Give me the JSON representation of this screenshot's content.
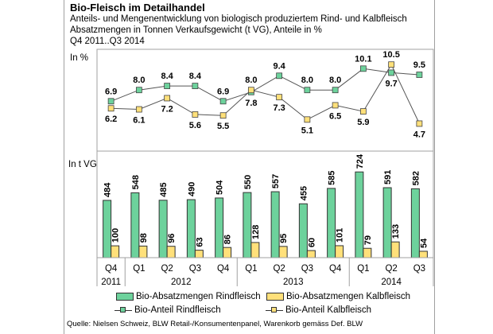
{
  "header": {
    "title": "Bio-Fleisch im Detailhandel",
    "subtitle1": "Anteils- und Mengenentwicklung von biologisch produziertem Rind- und Kalbfleisch",
    "subtitle2": "Absatzmengen in Tonnen Verkaufsgewicht (t VG), Anteile in %",
    "period": "Q4 2011..Q3 2014"
  },
  "colors": {
    "rind": "#6dd29c",
    "kalb": "#ffe07a",
    "line": "#555555",
    "axis": "#a0a0a0"
  },
  "chart_data": [
    {
      "type": "line",
      "title": "Bio-Anteil",
      "ylabel": "In %",
      "categories": [
        "Q4 2011",
        "Q1 2012",
        "Q2 2012",
        "Q3 2012",
        "Q4 2012",
        "Q1 2013",
        "Q2 2013",
        "Q3 2013",
        "Q4 2013",
        "Q1 2014",
        "Q2 2014",
        "Q3 2014"
      ],
      "series": [
        {
          "name": "Bio-Anteil Rindfleisch",
          "values": [
            6.9,
            8.0,
            8.4,
            8.4,
            6.9,
            7.8,
            9.4,
            8.0,
            8.0,
            10.1,
            9.7,
            9.5
          ]
        },
        {
          "name": "Bio-Anteil Kalbfleisch",
          "values": [
            6.2,
            6.1,
            7.2,
            5.6,
            5.5,
            8.0,
            7.3,
            5.1,
            6.5,
            5.9,
            10.5,
            4.7
          ]
        }
      ],
      "ylim": [
        2,
        12
      ],
      "grid": false
    },
    {
      "type": "bar",
      "title": "Bio-Absatzmengen",
      "ylabel": "In t VG",
      "categories": [
        "Q4 2011",
        "Q1 2012",
        "Q2 2012",
        "Q3 2012",
        "Q4 2012",
        "Q1 2013",
        "Q2 2013",
        "Q3 2013",
        "Q4 2013",
        "Q1 2014",
        "Q2 2014",
        "Q3 2014"
      ],
      "series": [
        {
          "name": "Bio-Absatzmengen Rindfleisch",
          "values": [
            484,
            548,
            485,
            490,
            504,
            550,
            557,
            455,
            585,
            724,
            591,
            582
          ]
        },
        {
          "name": "Bio-Absatzmengen Kalbfleisch",
          "values": [
            100,
            98,
            96,
            63,
            86,
            128,
            95,
            60,
            101,
            79,
            133,
            54
          ]
        }
      ],
      "ylim": [
        0,
        900
      ],
      "grid": false
    }
  ],
  "axis": {
    "quarters": [
      "Q4",
      "Q1",
      "Q2",
      "Q3",
      "Q4",
      "Q1",
      "Q2",
      "Q3",
      "Q4",
      "Q1",
      "Q2",
      "Q3"
    ],
    "years": [
      {
        "label": "2011",
        "span": 1
      },
      {
        "label": "2012",
        "span": 4
      },
      {
        "label": "2013",
        "span": 4
      },
      {
        "label": "2014",
        "span": 3
      }
    ]
  },
  "legend": {
    "bar_rind": "Bio-Absatzmengen Rindfleisch",
    "bar_kalb": "Bio-Absatzmengen Kalbfleisch",
    "line_rind": "Bio-Anteil Rindfleisch",
    "line_kalb": "Bio-Anteil Kalbfleisch"
  },
  "source": "Quelle: Nielsen Schweiz, BLW Retail-/Konsumentenpanel, Warenkorb gemäss Def. BLW"
}
